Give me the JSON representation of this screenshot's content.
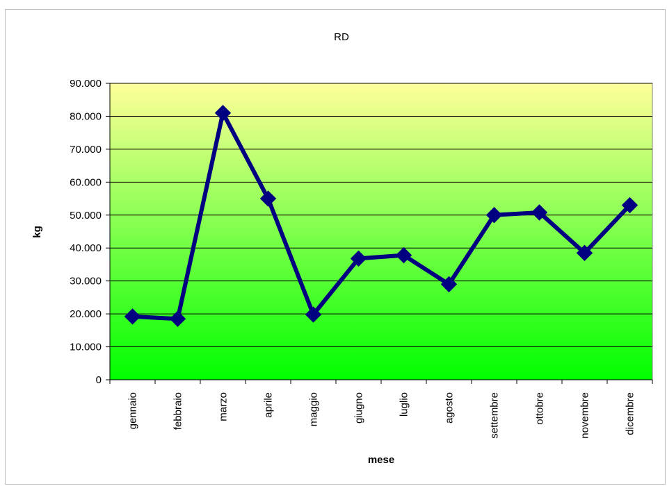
{
  "chart_data": {
    "type": "line",
    "title": "RD",
    "xlabel": "mese",
    "ylabel": "kg",
    "categories": [
      "gennaio",
      "febbraio",
      "marzo",
      "aprile",
      "maggio",
      "giugno",
      "luglio",
      "agosto",
      "settembre",
      "ottobre",
      "novembre",
      "dicembre"
    ],
    "values": [
      19200,
      18500,
      81000,
      55000,
      19800,
      36800,
      37800,
      29000,
      50000,
      50800,
      38500,
      53000
    ],
    "ylim": [
      0,
      90000
    ],
    "yticks": [
      0,
      10000,
      20000,
      30000,
      40000,
      50000,
      60000,
      70000,
      80000,
      90000
    ],
    "ytick_labels": [
      "0",
      "10.000",
      "20.000",
      "30.000",
      "40.000",
      "50.000",
      "60.000",
      "70.000",
      "80.000",
      "90.000"
    ],
    "grid": true,
    "legend": "none",
    "colors": {
      "line": "#000080",
      "marker": "#000080",
      "plot_bg_top": "#ffff99",
      "plot_bg_bottom": "#00ff00",
      "gridline": "#000000"
    }
  }
}
